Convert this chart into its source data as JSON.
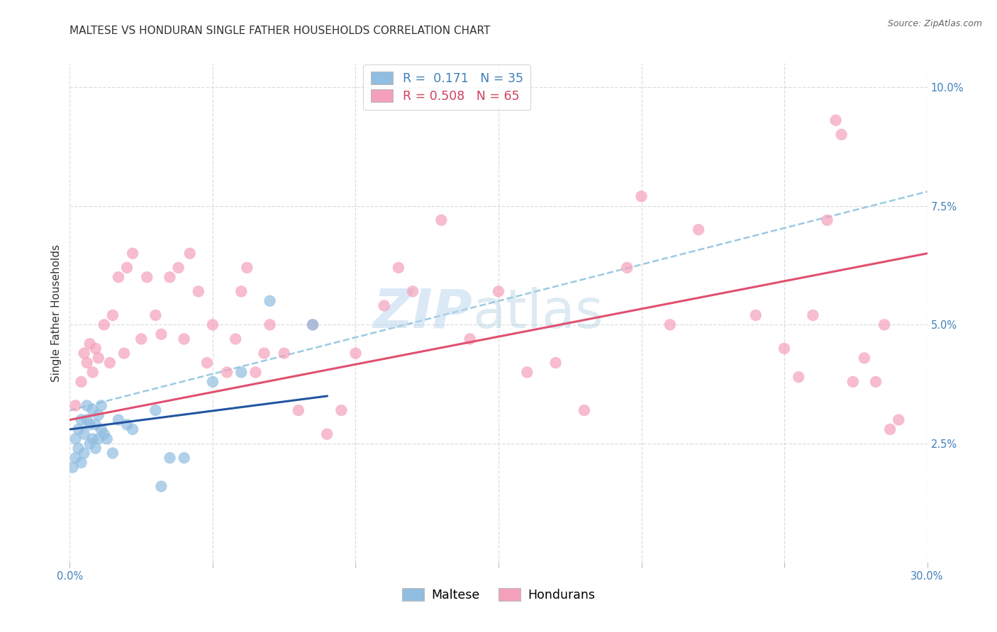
{
  "title": "MALTESE VS HONDURAN SINGLE FATHER HOUSEHOLDS CORRELATION CHART",
  "source": "Source: ZipAtlas.com",
  "ylabel": "Single Father Households",
  "watermark_zip": "ZIP",
  "watermark_atlas": "atlas",
  "xlim": [
    0.0,
    0.3
  ],
  "ylim": [
    0.0,
    0.105
  ],
  "xticks": [
    0.0,
    0.05,
    0.1,
    0.15,
    0.2,
    0.25,
    0.3
  ],
  "yticks": [
    0.0,
    0.025,
    0.05,
    0.075,
    0.1
  ],
  "maltese_color": "#90bde0",
  "honduran_color": "#f5a0ba",
  "maltese_line_color": "#2255a0",
  "honduran_line_color": "#e05070",
  "dashed_line_color": "#90c5e0",
  "blue_scatter_x": [
    0.001,
    0.002,
    0.002,
    0.003,
    0.003,
    0.004,
    0.004,
    0.005,
    0.005,
    0.006,
    0.006,
    0.007,
    0.007,
    0.008,
    0.008,
    0.009,
    0.009,
    0.01,
    0.01,
    0.011,
    0.011,
    0.012,
    0.013,
    0.015,
    0.017,
    0.02,
    0.022,
    0.03,
    0.032,
    0.035,
    0.04,
    0.05,
    0.06,
    0.07,
    0.085
  ],
  "blue_scatter_y": [
    0.02,
    0.022,
    0.026,
    0.024,
    0.028,
    0.021,
    0.03,
    0.023,
    0.027,
    0.03,
    0.033,
    0.025,
    0.029,
    0.026,
    0.032,
    0.024,
    0.029,
    0.026,
    0.031,
    0.028,
    0.033,
    0.027,
    0.026,
    0.023,
    0.03,
    0.029,
    0.028,
    0.032,
    0.016,
    0.022,
    0.022,
    0.038,
    0.04,
    0.055,
    0.05
  ],
  "pink_scatter_x": [
    0.002,
    0.004,
    0.005,
    0.006,
    0.007,
    0.008,
    0.009,
    0.01,
    0.012,
    0.014,
    0.015,
    0.017,
    0.019,
    0.02,
    0.022,
    0.025,
    0.027,
    0.03,
    0.032,
    0.035,
    0.038,
    0.04,
    0.042,
    0.045,
    0.048,
    0.05,
    0.055,
    0.058,
    0.06,
    0.062,
    0.065,
    0.068,
    0.07,
    0.075,
    0.08,
    0.085,
    0.09,
    0.095,
    0.1,
    0.11,
    0.115,
    0.12,
    0.13,
    0.14,
    0.15,
    0.16,
    0.17,
    0.18,
    0.195,
    0.2,
    0.21,
    0.22,
    0.24,
    0.25,
    0.255,
    0.26,
    0.265,
    0.268,
    0.27,
    0.274,
    0.278,
    0.282,
    0.285,
    0.287,
    0.29
  ],
  "pink_scatter_y": [
    0.033,
    0.038,
    0.044,
    0.042,
    0.046,
    0.04,
    0.045,
    0.043,
    0.05,
    0.042,
    0.052,
    0.06,
    0.044,
    0.062,
    0.065,
    0.047,
    0.06,
    0.052,
    0.048,
    0.06,
    0.062,
    0.047,
    0.065,
    0.057,
    0.042,
    0.05,
    0.04,
    0.047,
    0.057,
    0.062,
    0.04,
    0.044,
    0.05,
    0.044,
    0.032,
    0.05,
    0.027,
    0.032,
    0.044,
    0.054,
    0.062,
    0.057,
    0.072,
    0.047,
    0.057,
    0.04,
    0.042,
    0.032,
    0.062,
    0.077,
    0.05,
    0.07,
    0.052,
    0.045,
    0.039,
    0.052,
    0.072,
    0.093,
    0.09,
    0.038,
    0.043,
    0.038,
    0.05,
    0.028,
    0.03
  ],
  "blue_line_x0": 0.0,
  "blue_line_x1": 0.09,
  "blue_line_y0": 0.028,
  "blue_line_y1": 0.035,
  "pink_line_x0": 0.0,
  "pink_line_x1": 0.3,
  "pink_line_y0": 0.03,
  "pink_line_y1": 0.065,
  "dashed_line_x0": 0.0,
  "dashed_line_x1": 0.3,
  "dashed_line_y0": 0.032,
  "dashed_line_y1": 0.078,
  "background_color": "#ffffff",
  "grid_color": "#dddddd",
  "title_fontsize": 11,
  "axis_label_fontsize": 11,
  "tick_fontsize": 10.5,
  "legend_fontsize": 12.5,
  "source_fontsize": 9
}
